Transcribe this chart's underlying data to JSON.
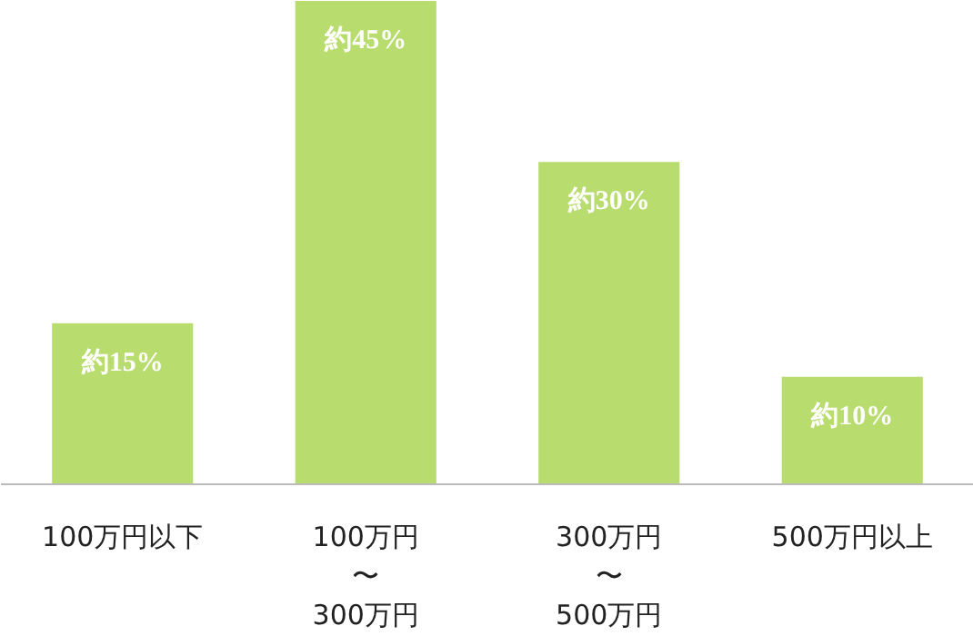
{
  "chart_data": {
    "type": "bar",
    "categories": [
      "100万円以下",
      "100万円〜300万円",
      "300万円〜500万円",
      "500万円以上"
    ],
    "values": [
      15,
      45,
      30,
      10
    ],
    "color": "#b8dc6e",
    "value_labels": [
      "約15%",
      "約45%",
      "約30%",
      "約10%"
    ],
    "grid": false
  }
}
